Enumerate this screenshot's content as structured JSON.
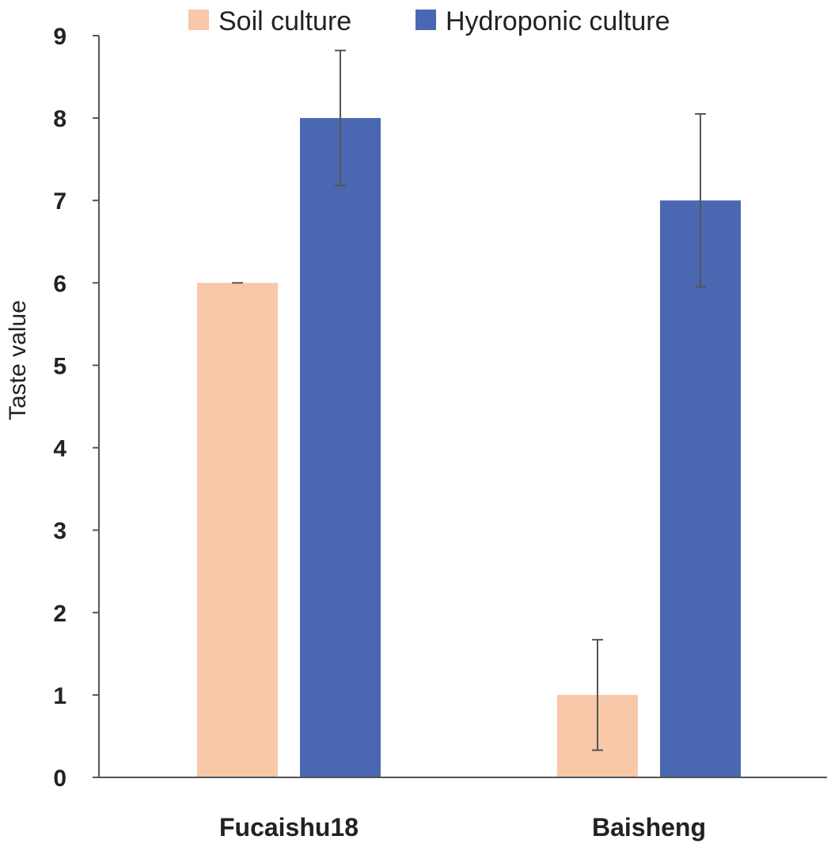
{
  "chart_data": {
    "type": "bar",
    "title": "",
    "xlabel": "",
    "ylabel": "Taste value",
    "ylim": [
      0,
      9
    ],
    "yticks": [
      0,
      1,
      2,
      3,
      4,
      5,
      6,
      7,
      8,
      9
    ],
    "grid": false,
    "legend_position": "top",
    "categories": [
      "Fucaishu18",
      "Baisheng"
    ],
    "series": [
      {
        "name": "Soil culture",
        "color": "#f8c8a8",
        "values": [
          6,
          1
        ],
        "errors": [
          0.0,
          0.67
        ]
      },
      {
        "name": "Hydroponic culture",
        "color": "#4a68b1",
        "values": [
          8,
          7
        ],
        "errors": [
          0.82,
          1.05
        ]
      }
    ]
  }
}
